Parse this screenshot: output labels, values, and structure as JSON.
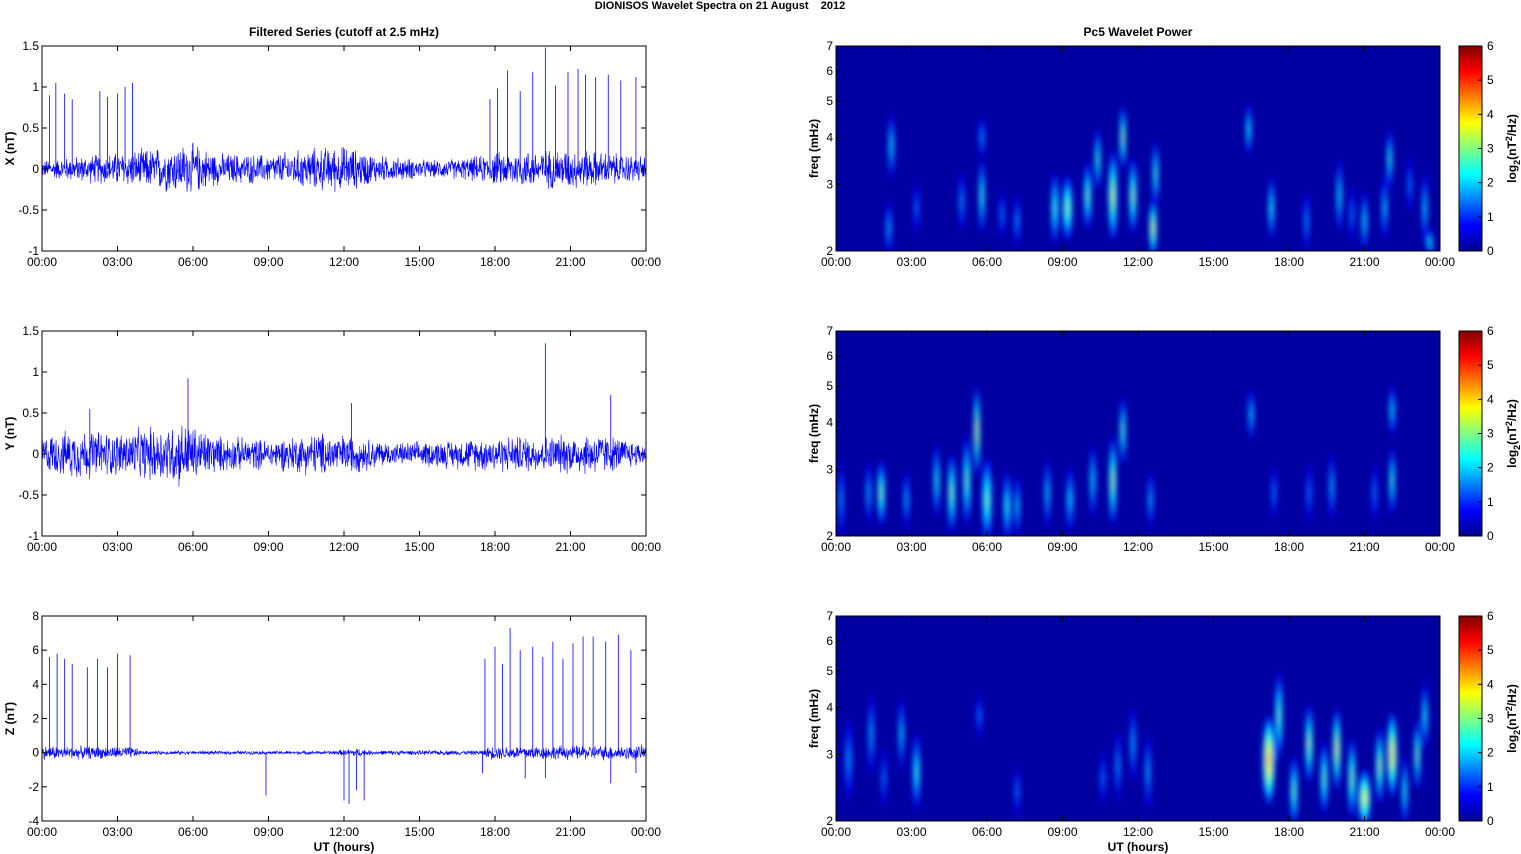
{
  "figure": {
    "title": "DIONISOS Wavelet Spectra on 21 August    2012"
  },
  "colormap": [
    "#00008f",
    "#0000ff",
    "#0080ff",
    "#00ffff",
    "#80ff80",
    "#ffff00",
    "#ff8000",
    "#ff0000",
    "#800000"
  ],
  "chart_data": [
    {
      "type": "line",
      "panel": "X time series",
      "title": "Filtered Series (cutoff at 2.5 mHz)",
      "ylabel": "X (nT)",
      "xlabel": "",
      "ylim": [
        -1,
        1.5
      ],
      "yticks": [
        "1.5",
        "1",
        "0.5",
        "0",
        "-0.5",
        "-1"
      ],
      "xlim_hours": [
        0,
        24
      ],
      "xticks": [
        "00:00",
        "03:00",
        "06:00",
        "09:00",
        "12:00",
        "15:00",
        "18:00",
        "21:00",
        "00:00"
      ],
      "color": "#0000ff",
      "envelope": [
        [
          0,
          0.12
        ],
        [
          1.5,
          0.18
        ],
        [
          3.5,
          0.25
        ],
        [
          5,
          0.32
        ],
        [
          6,
          0.35
        ],
        [
          7,
          0.22
        ],
        [
          9,
          0.2
        ],
        [
          11,
          0.3
        ],
        [
          12,
          0.32
        ],
        [
          13.5,
          0.18
        ],
        [
          15.5,
          0.12
        ],
        [
          17,
          0.16
        ],
        [
          18.5,
          0.25
        ],
        [
          21,
          0.28
        ],
        [
          24,
          0.18
        ]
      ],
      "spikes": [
        [
          0.3,
          0.9
        ],
        [
          0.55,
          1.05
        ],
        [
          0.9,
          0.92
        ],
        [
          1.2,
          0.85
        ],
        [
          2.3,
          0.95
        ],
        [
          2.6,
          0.88
        ],
        [
          3.0,
          0.92
        ],
        [
          3.3,
          1.0
        ],
        [
          3.6,
          1.05
        ],
        [
          17.8,
          0.85
        ],
        [
          18.1,
          0.98
        ],
        [
          18.5,
          1.2
        ],
        [
          19.0,
          0.95
        ],
        [
          19.5,
          1.18
        ],
        [
          20.0,
          1.48
        ],
        [
          20.4,
          1.02
        ],
        [
          20.9,
          1.18
        ],
        [
          21.3,
          1.22
        ],
        [
          21.6,
          1.15
        ],
        [
          22.0,
          1.12
        ],
        [
          22.5,
          1.15
        ],
        [
          23.0,
          1.08
        ],
        [
          23.6,
          1.12
        ]
      ]
    },
    {
      "type": "line",
      "panel": "Y time series",
      "title": "",
      "ylabel": "Y (nT)",
      "xlabel": "",
      "ylim": [
        -1,
        1.5
      ],
      "yticks": [
        "1.5",
        "1",
        "0.5",
        "0",
        "-0.5",
        "-1"
      ],
      "xlim_hours": [
        0,
        24
      ],
      "xticks": [
        "00:00",
        "03:00",
        "06:00",
        "09:00",
        "12:00",
        "15:00",
        "18:00",
        "21:00",
        "00:00"
      ],
      "color": "#0000ff",
      "envelope": [
        [
          0,
          0.25
        ],
        [
          1.5,
          0.35
        ],
        [
          3,
          0.3
        ],
        [
          4.5,
          0.38
        ],
        [
          5.5,
          0.45
        ],
        [
          6,
          0.4
        ],
        [
          7,
          0.25
        ],
        [
          9,
          0.2
        ],
        [
          11,
          0.3
        ],
        [
          12.5,
          0.25
        ],
        [
          14,
          0.15
        ],
        [
          16.5,
          0.2
        ],
        [
          18,
          0.25
        ],
        [
          20,
          0.25
        ],
        [
          22,
          0.3
        ],
        [
          23,
          0.22
        ],
        [
          24,
          0.15
        ]
      ],
      "spikes": [
        [
          5.8,
          0.92
        ],
        [
          20.0,
          1.35
        ],
        [
          22.6,
          0.72
        ],
        [
          1.9,
          0.55
        ],
        [
          12.3,
          0.62
        ]
      ]
    },
    {
      "type": "line",
      "panel": "Z time series",
      "title": "",
      "ylabel": "Z (nT)",
      "xlabel": "UT (hours)",
      "ylim": [
        -4,
        8
      ],
      "yticks": [
        "8",
        "6",
        "4",
        "2",
        "0",
        "-2",
        "-4"
      ],
      "xlim_hours": [
        0,
        24
      ],
      "xticks": [
        "00:00",
        "03:00",
        "06:00",
        "09:00",
        "12:00",
        "15:00",
        "18:00",
        "21:00",
        "00:00"
      ],
      "color": "#0000ff",
      "envelope": [
        [
          0,
          0.45
        ],
        [
          3.6,
          0.4
        ],
        [
          4,
          0.12
        ],
        [
          11.5,
          0.12
        ],
        [
          12.5,
          0.3
        ],
        [
          13,
          0.15
        ],
        [
          17.5,
          0.15
        ],
        [
          17.8,
          0.45
        ],
        [
          24,
          0.5
        ]
      ],
      "spikes": [
        [
          0.3,
          5.6
        ],
        [
          0.6,
          5.8
        ],
        [
          0.9,
          5.5
        ],
        [
          1.2,
          5.2
        ],
        [
          1.8,
          5.0
        ],
        [
          2.2,
          5.5
        ],
        [
          2.6,
          5.0
        ],
        [
          3.0,
          5.8
        ],
        [
          3.5,
          5.7
        ],
        [
          17.6,
          5.5
        ],
        [
          18.0,
          6.2
        ],
        [
          18.3,
          5.2
        ],
        [
          18.6,
          7.3
        ],
        [
          19.0,
          6.0
        ],
        [
          19.5,
          6.2
        ],
        [
          19.9,
          5.6
        ],
        [
          20.3,
          6.5
        ],
        [
          20.7,
          5.5
        ],
        [
          21.1,
          6.4
        ],
        [
          21.5,
          6.8
        ],
        [
          21.9,
          6.8
        ],
        [
          22.4,
          6.5
        ],
        [
          22.9,
          6.9
        ],
        [
          23.4,
          6.0
        ],
        [
          8.9,
          -2.5
        ],
        [
          12.0,
          -2.8
        ],
        [
          12.2,
          -3.0
        ],
        [
          12.5,
          -2.2
        ],
        [
          12.8,
          -2.8
        ],
        [
          17.5,
          -1.2
        ],
        [
          19.2,
          -1.5
        ],
        [
          20.0,
          -1.5
        ],
        [
          22.6,
          -1.8
        ],
        [
          23.6,
          -1.2
        ]
      ]
    },
    {
      "type": "heatmap",
      "panel": "X wavelet power",
      "title": "Pc5 Wavelet Power",
      "ylabel": "freq (mHz)",
      "xlabel": "",
      "ylim_mhz": [
        2,
        7
      ],
      "yscale": "log",
      "yticks": [
        "7",
        "6",
        "5",
        "4",
        "3",
        "2"
      ],
      "xlim_hours": [
        0,
        24
      ],
      "xticks": [
        "00:00",
        "03:00",
        "06:00",
        "09:00",
        "12:00",
        "15:00",
        "18:00",
        "21:00",
        "00:00"
      ],
      "colorbar": {
        "label_main": "log",
        "label_sub": "2",
        "label_rest": "(nT",
        "label_sup": "2",
        "label_end": "/Hz)",
        "ticks": [
          "6",
          "5",
          "4",
          "3",
          "2",
          "1",
          "0"
        ],
        "range": [
          0,
          6
        ]
      },
      "blobs": [
        [
          2.1,
          2.3,
          0.12,
          0.35,
          2.0
        ],
        [
          2.2,
          3.8,
          0.08,
          0.6,
          2.4
        ],
        [
          3.2,
          2.6,
          0.1,
          0.35,
          1.5
        ],
        [
          5.0,
          2.7,
          0.12,
          0.4,
          1.8
        ],
        [
          5.8,
          2.8,
          0.12,
          0.5,
          2.8
        ],
        [
          5.8,
          4.0,
          0.08,
          0.4,
          1.8
        ],
        [
          6.6,
          2.5,
          0.1,
          0.3,
          1.6
        ],
        [
          7.2,
          2.4,
          0.1,
          0.3,
          1.8
        ],
        [
          8.7,
          2.6,
          0.15,
          0.45,
          2.8
        ],
        [
          9.2,
          2.6,
          0.2,
          0.4,
          3.2
        ],
        [
          10.0,
          2.8,
          0.15,
          0.45,
          3.0
        ],
        [
          10.4,
          3.5,
          0.1,
          0.5,
          2.8
        ],
        [
          11.0,
          2.8,
          0.18,
          0.6,
          3.6
        ],
        [
          11.4,
          4.0,
          0.1,
          0.6,
          3.4
        ],
        [
          11.8,
          2.8,
          0.15,
          0.5,
          3.3
        ],
        [
          12.6,
          2.3,
          0.15,
          0.35,
          3.8
        ],
        [
          12.7,
          3.2,
          0.1,
          0.5,
          2.8
        ],
        [
          16.4,
          4.2,
          0.08,
          0.5,
          2.5
        ],
        [
          17.3,
          2.6,
          0.12,
          0.4,
          2.6
        ],
        [
          18.7,
          2.4,
          0.1,
          0.35,
          1.8
        ],
        [
          20.0,
          2.8,
          0.1,
          0.5,
          2.4
        ],
        [
          20.5,
          2.5,
          0.1,
          0.35,
          1.6
        ],
        [
          21.0,
          2.4,
          0.12,
          0.35,
          2.4
        ],
        [
          21.8,
          2.6,
          0.1,
          0.4,
          2.2
        ],
        [
          22.0,
          3.5,
          0.1,
          0.5,
          2.6
        ],
        [
          22.8,
          3.0,
          0.1,
          0.4,
          1.6
        ],
        [
          23.4,
          2.6,
          0.1,
          0.45,
          2.2
        ],
        [
          23.6,
          2.1,
          0.08,
          0.25,
          2.6
        ]
      ]
    },
    {
      "type": "heatmap",
      "panel": "Y wavelet power",
      "title": "",
      "ylabel": "freq (mHz)",
      "xlabel": "",
      "ylim_mhz": [
        2,
        7
      ],
      "yscale": "log",
      "yticks": [
        "7",
        "6",
        "5",
        "4",
        "3",
        "2"
      ],
      "xlim_hours": [
        0,
        24
      ],
      "xticks": [
        "00:00",
        "03:00",
        "06:00",
        "09:00",
        "12:00",
        "15:00",
        "18:00",
        "21:00",
        "00:00"
      ],
      "colorbar": {
        "label_main": "log",
        "label_sub": "2",
        "label_rest": "(nT",
        "label_sup": "2",
        "label_end": "/Hz)",
        "ticks": [
          "6",
          "5",
          "4",
          "3",
          "2",
          "1",
          "0"
        ],
        "range": [
          0,
          6
        ]
      },
      "blobs": [
        [
          0.2,
          2.5,
          0.1,
          0.5,
          1.8
        ],
        [
          1.3,
          2.6,
          0.1,
          0.4,
          2.0
        ],
        [
          1.8,
          2.6,
          0.15,
          0.4,
          3.2
        ],
        [
          2.8,
          2.5,
          0.12,
          0.35,
          2.0
        ],
        [
          4.0,
          2.8,
          0.12,
          0.5,
          2.6
        ],
        [
          4.6,
          2.6,
          0.15,
          0.5,
          3.2
        ],
        [
          5.2,
          2.8,
          0.15,
          0.6,
          3.0
        ],
        [
          5.6,
          3.8,
          0.1,
          0.8,
          3.8
        ],
        [
          6.0,
          2.5,
          0.2,
          0.5,
          3.0
        ],
        [
          6.8,
          2.4,
          0.15,
          0.4,
          2.6
        ],
        [
          7.2,
          2.4,
          0.1,
          0.35,
          2.2
        ],
        [
          8.4,
          2.6,
          0.12,
          0.45,
          2.2
        ],
        [
          9.3,
          2.5,
          0.15,
          0.4,
          2.2
        ],
        [
          10.2,
          2.8,
          0.12,
          0.5,
          2.4
        ],
        [
          11.0,
          2.8,
          0.15,
          0.6,
          3.4
        ],
        [
          11.4,
          3.8,
          0.1,
          0.6,
          3.0
        ],
        [
          12.5,
          2.5,
          0.1,
          0.35,
          2.0
        ],
        [
          16.5,
          4.2,
          0.08,
          0.5,
          2.2
        ],
        [
          17.4,
          2.6,
          0.08,
          0.35,
          1.6
        ],
        [
          18.8,
          2.6,
          0.08,
          0.4,
          1.6
        ],
        [
          19.7,
          2.7,
          0.1,
          0.45,
          2.0
        ],
        [
          21.4,
          2.6,
          0.1,
          0.4,
          1.6
        ],
        [
          22.1,
          2.8,
          0.1,
          0.45,
          2.8
        ],
        [
          22.1,
          4.3,
          0.08,
          0.5,
          2.4
        ]
      ]
    },
    {
      "type": "heatmap",
      "panel": "Z wavelet power",
      "title": "",
      "ylabel": "freq (mHz)",
      "xlabel": "UT (hours)",
      "ylim_mhz": [
        2,
        7
      ],
      "yscale": "log",
      "yticks": [
        "7",
        "6",
        "5",
        "4",
        "3",
        "2"
      ],
      "xlim_hours": [
        0,
        24
      ],
      "xticks": [
        "00:00",
        "03:00",
        "06:00",
        "09:00",
        "12:00",
        "15:00",
        "18:00",
        "21:00",
        "00:00"
      ],
      "colorbar": {
        "label_main": "log",
        "label_sub": "2",
        "label_rest": "(nT",
        "label_sup": "2",
        "label_end": "/Hz)",
        "ticks": [
          "6",
          "5",
          "4",
          "3",
          "2",
          "1",
          "0"
        ],
        "range": [
          0,
          6
        ]
      },
      "blobs": [
        [
          0.5,
          2.9,
          0.15,
          0.6,
          1.8
        ],
        [
          1.4,
          3.4,
          0.12,
          0.7,
          2.0
        ],
        [
          1.9,
          2.6,
          0.1,
          0.4,
          1.6
        ],
        [
          2.6,
          3.4,
          0.12,
          0.6,
          2.2
        ],
        [
          3.2,
          2.7,
          0.15,
          0.5,
          2.6
        ],
        [
          5.7,
          3.8,
          0.06,
          0.4,
          1.6
        ],
        [
          7.2,
          2.4,
          0.06,
          0.3,
          1.6
        ],
        [
          10.6,
          2.6,
          0.08,
          0.35,
          1.6
        ],
        [
          11.2,
          2.8,
          0.1,
          0.5,
          1.8
        ],
        [
          11.8,
          3.2,
          0.1,
          0.6,
          2.0
        ],
        [
          12.4,
          2.7,
          0.1,
          0.5,
          2.0
        ],
        [
          17.2,
          2.9,
          0.25,
          0.6,
          4.6
        ],
        [
          17.6,
          3.8,
          0.15,
          0.8,
          3.0
        ],
        [
          18.2,
          2.4,
          0.15,
          0.4,
          3.0
        ],
        [
          18.8,
          3.2,
          0.15,
          0.6,
          3.4
        ],
        [
          19.4,
          2.6,
          0.15,
          0.45,
          3.0
        ],
        [
          19.9,
          3.1,
          0.15,
          0.6,
          3.8
        ],
        [
          20.5,
          2.6,
          0.15,
          0.5,
          3.2
        ],
        [
          21.0,
          2.3,
          0.25,
          0.35,
          3.8
        ],
        [
          21.6,
          2.8,
          0.15,
          0.5,
          3.4
        ],
        [
          22.1,
          3.0,
          0.2,
          0.6,
          4.2
        ],
        [
          22.6,
          2.4,
          0.12,
          0.4,
          2.6
        ],
        [
          23.1,
          3.0,
          0.12,
          0.5,
          3.2
        ],
        [
          23.4,
          3.8,
          0.1,
          0.6,
          2.6
        ]
      ]
    }
  ]
}
